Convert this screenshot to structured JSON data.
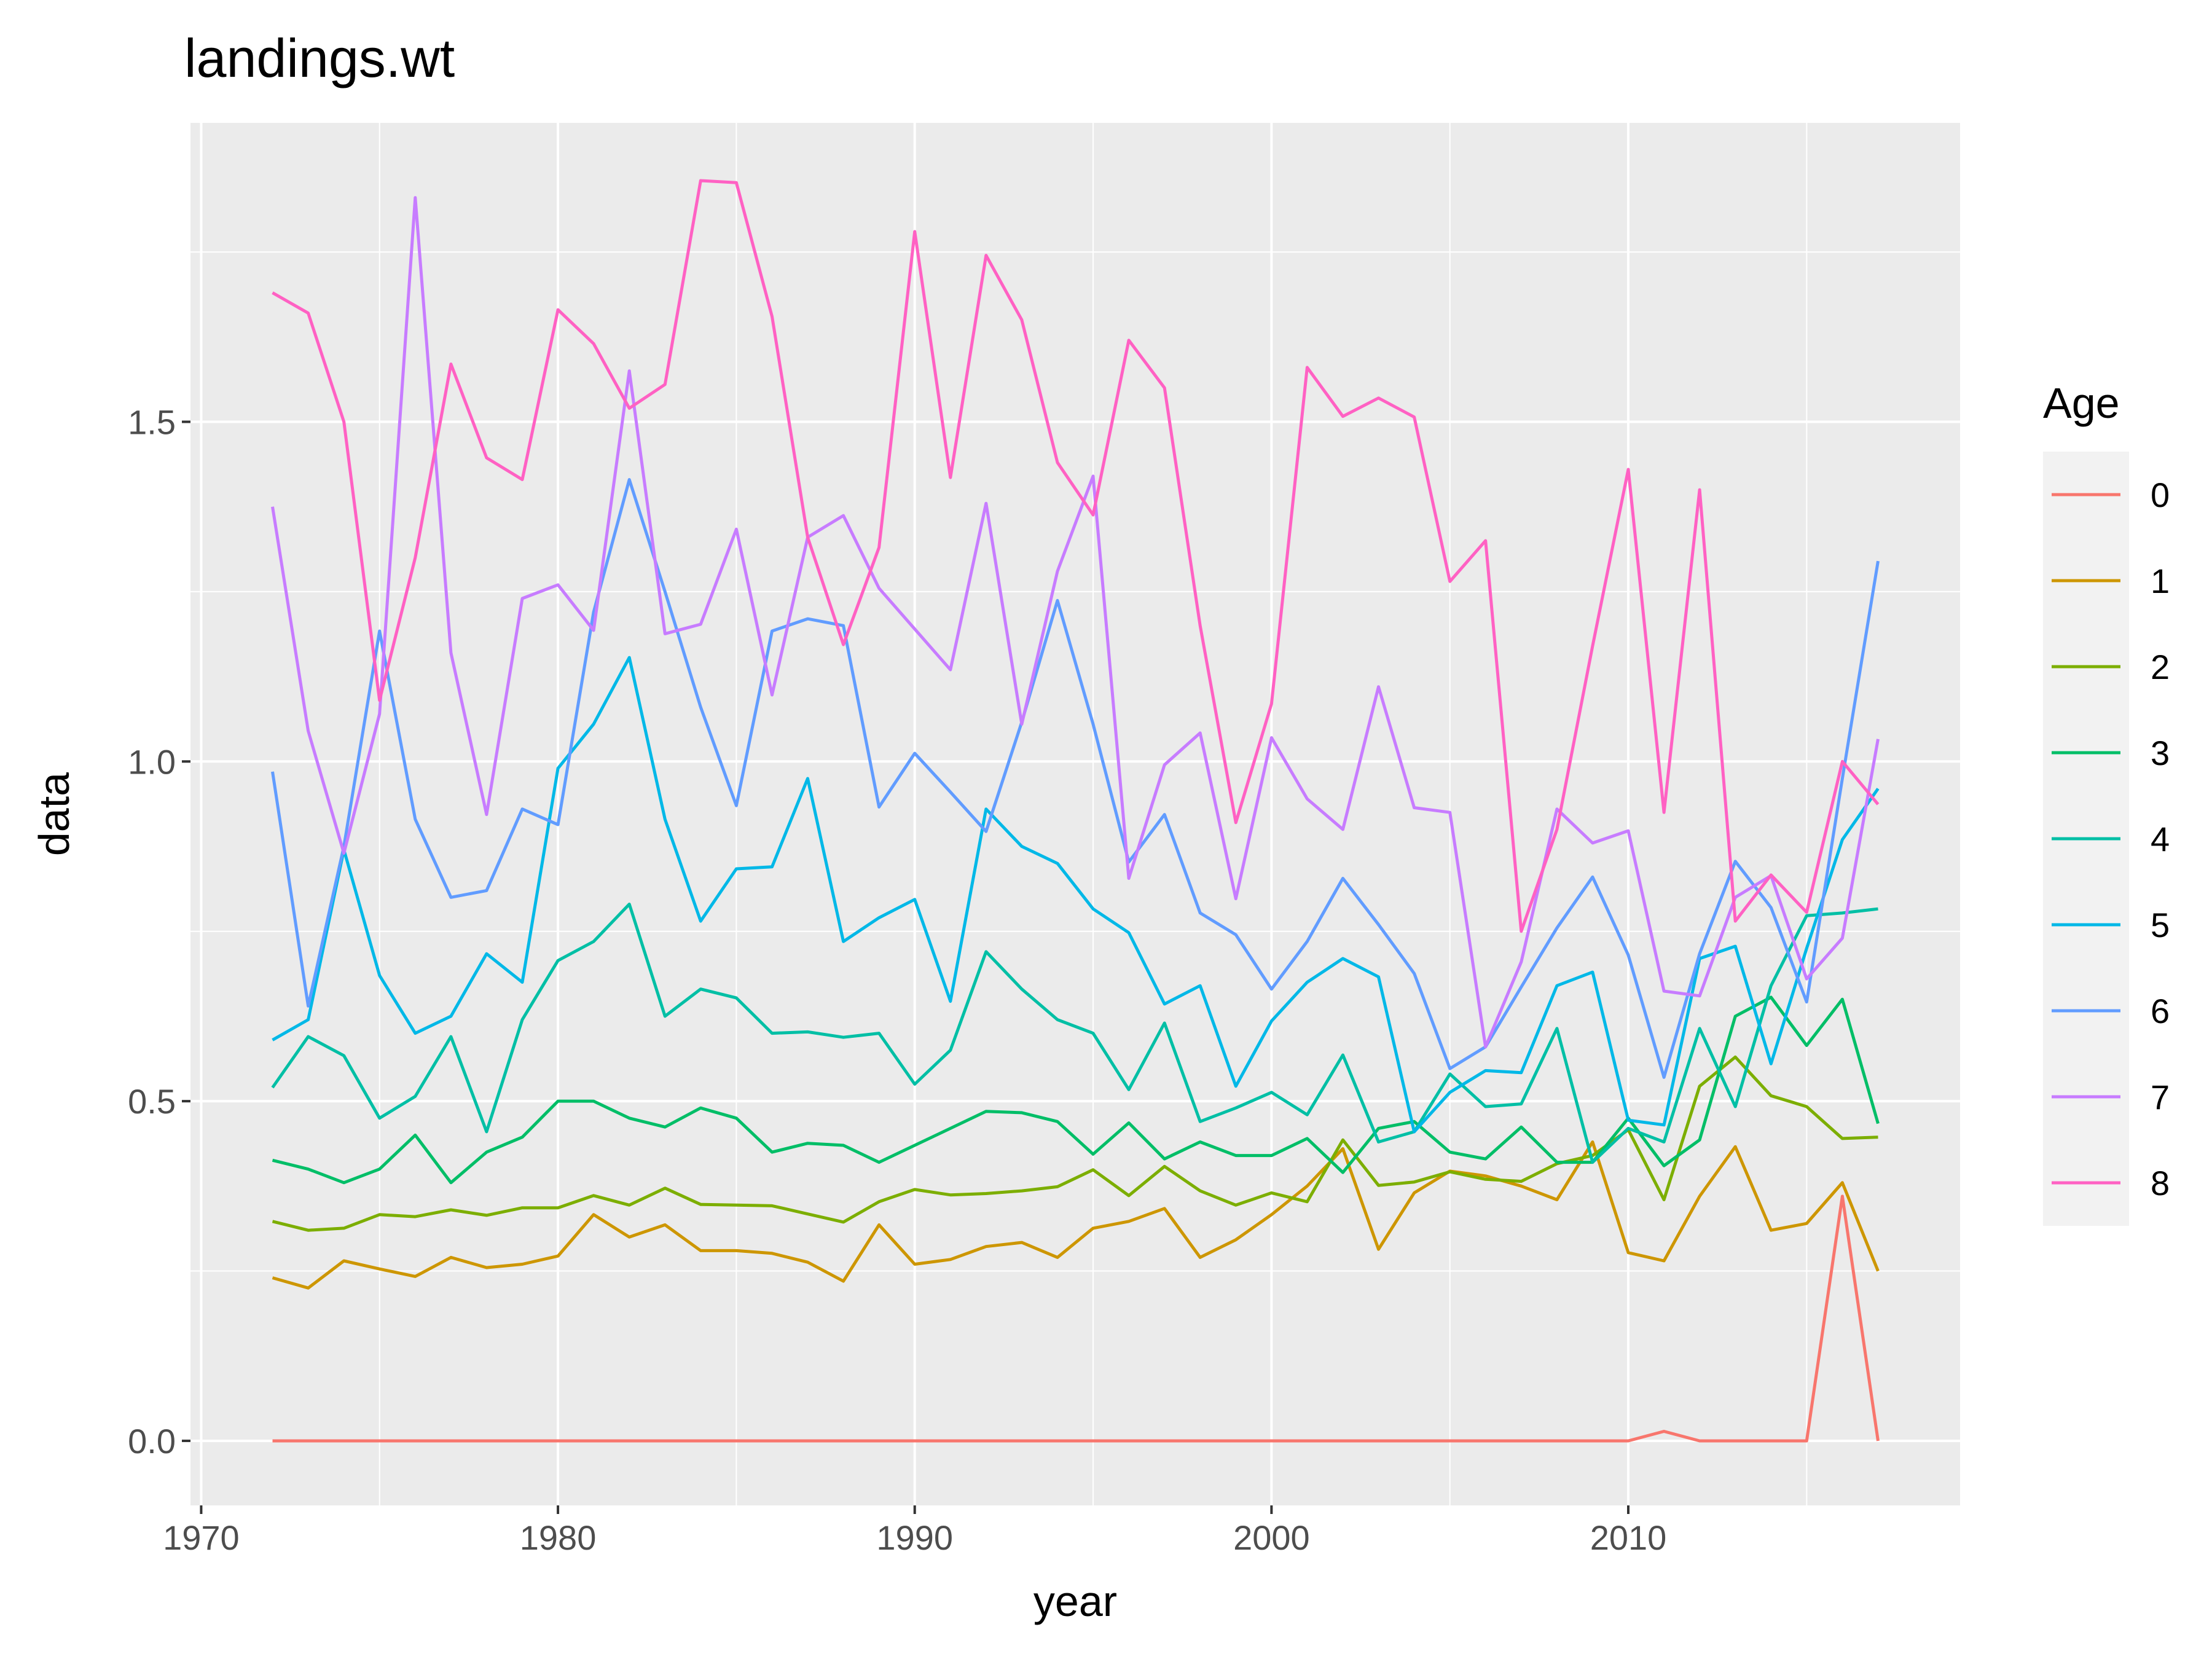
{
  "chart_data": {
    "type": "line",
    "title": "landings.wt",
    "xlabel": "year",
    "ylabel": "data",
    "xlim": [
      1969.7,
      2019.3
    ],
    "ylim": [
      -0.095,
      1.94
    ],
    "x_ticks": [
      1970,
      1980,
      1990,
      2000,
      2010
    ],
    "x_tick_labels": [
      "1970",
      "1980",
      "1990",
      "2000",
      "2010"
    ],
    "y_ticks": [
      0,
      0.5,
      1,
      1.5
    ],
    "y_tick_labels": [
      "0.0",
      "0.5",
      "1.0",
      "1.5"
    ],
    "grid": true,
    "legend": {
      "title": "Age",
      "position": "right"
    },
    "x": [
      1972,
      1973,
      1974,
      1975,
      1976,
      1977,
      1978,
      1979,
      1980,
      1981,
      1982,
      1983,
      1984,
      1985,
      1986,
      1987,
      1988,
      1989,
      1990,
      1991,
      1992,
      1993,
      1994,
      1995,
      1996,
      1997,
      1998,
      1999,
      2000,
      2001,
      2002,
      2003,
      2004,
      2005,
      2006,
      2007,
      2008,
      2009,
      2010,
      2011,
      2012,
      2013,
      2014,
      2015,
      2016,
      2017
    ],
    "series": [
      {
        "name": "0",
        "color": "#F8766D",
        "values": [
          0,
          0,
          0,
          0,
          0,
          0,
          0,
          0,
          0,
          0,
          0,
          0,
          0,
          0,
          0,
          0,
          0,
          0,
          0,
          0,
          0,
          0,
          0,
          0,
          0,
          0,
          0,
          0,
          0,
          0,
          0,
          0,
          0,
          0,
          0,
          0,
          0,
          0,
          0,
          0.014,
          0,
          0,
          0,
          0,
          0.36,
          0
        ]
      },
      {
        "name": "1",
        "color": "#CD9600",
        "values": [
          0.24,
          0.225,
          0.265,
          0.253,
          0.242,
          0.27,
          0.255,
          0.26,
          0.272,
          0.333,
          0.3,
          0.318,
          0.28,
          0.28,
          0.276,
          0.263,
          0.235,
          0.318,
          0.26,
          0.267,
          0.286,
          0.292,
          0.27,
          0.313,
          0.323,
          0.342,
          0.27,
          0.296,
          0.333,
          0.375,
          0.43,
          0.282,
          0.365,
          0.397,
          0.39,
          0.375,
          0.355,
          0.44,
          0.277,
          0.265,
          0.36,
          0.433,
          0.31,
          0.32,
          0.38,
          0.25
        ]
      },
      {
        "name": "2",
        "color": "#7CAE00",
        "values": [
          0.323,
          0.31,
          0.313,
          0.333,
          0.33,
          0.34,
          0.332,
          0.343,
          0.343,
          0.361,
          0.347,
          0.372,
          0.348,
          0.347,
          0.346,
          0.334,
          0.322,
          0.352,
          0.37,
          0.362,
          0.364,
          0.368,
          0.374,
          0.399,
          0.361,
          0.404,
          0.368,
          0.347,
          0.365,
          0.352,
          0.443,
          0.376,
          0.381,
          0.396,
          0.385,
          0.382,
          0.408,
          0.42,
          0.458,
          0.355,
          0.522,
          0.565,
          0.508,
          0.492,
          0.445,
          0.447
        ]
      },
      {
        "name": "3",
        "color": "#00BE67",
        "values": [
          0.413,
          0.4,
          0.38,
          0.4,
          0.45,
          0.38,
          0.425,
          0.447,
          0.5,
          0.5,
          0.475,
          0.462,
          0.49,
          0.475,
          0.425,
          0.438,
          0.435,
          0.41,
          0.435,
          0.46,
          0.485,
          0.483,
          0.47,
          0.422,
          0.468,
          0.415,
          0.44,
          0.42,
          0.42,
          0.445,
          0.395,
          0.46,
          0.47,
          0.425,
          0.415,
          0.462,
          0.41,
          0.41,
          0.475,
          0.405,
          0.443,
          0.625,
          0.653,
          0.582,
          0.65,
          0.467
        ]
      },
      {
        "name": "4",
        "color": "#00BFA5",
        "values": [
          0.52,
          0.595,
          0.567,
          0.475,
          0.507,
          0.595,
          0.455,
          0.62,
          0.707,
          0.735,
          0.79,
          0.625,
          0.665,
          0.652,
          0.6,
          0.602,
          0.594,
          0.6,
          0.525,
          0.575,
          0.72,
          0.665,
          0.62,
          0.6,
          0.517,
          0.615,
          0.47,
          0.49,
          0.513,
          0.48,
          0.568,
          0.44,
          0.455,
          0.54,
          0.492,
          0.496,
          0.607,
          0.41,
          0.46,
          0.44,
          0.607,
          0.492,
          0.67,
          0.773,
          0.777,
          0.783
        ]
      },
      {
        "name": "5",
        "color": "#00B8E7",
        "values": [
          0.59,
          0.62,
          0.87,
          0.685,
          0.6,
          0.625,
          0.717,
          0.675,
          0.99,
          1.055,
          1.153,
          0.915,
          0.765,
          0.842,
          0.845,
          0.975,
          0.735,
          0.77,
          0.797,
          0.647,
          0.93,
          0.875,
          0.85,
          0.783,
          0.748,
          0.643,
          0.67,
          0.522,
          0.618,
          0.675,
          0.71,
          0.683,
          0.455,
          0.513,
          0.545,
          0.542,
          0.67,
          0.69,
          0.472,
          0.465,
          0.71,
          0.728,
          0.555,
          0.725,
          0.885,
          0.96
        ]
      },
      {
        "name": "6",
        "color": "#619CFF",
        "values": [
          0.985,
          0.64,
          0.875,
          1.192,
          0.915,
          0.8,
          0.81,
          0.93,
          0.907,
          1.22,
          1.415,
          1.25,
          1.08,
          0.935,
          1.192,
          1.21,
          1.2,
          0.933,
          1.012,
          0.955,
          0.897,
          1.058,
          1.237,
          1.055,
          0.852,
          0.922,
          0.777,
          0.745,
          0.665,
          0.735,
          0.828,
          0.76,
          0.688,
          0.548,
          0.58,
          0.668,
          0.755,
          0.83,
          0.715,
          0.535,
          0.717,
          0.853,
          0.785,
          0.646,
          0.975,
          1.295
        ]
      },
      {
        "name": "7",
        "color": "#C77CFF",
        "values": [
          1.375,
          1.045,
          0.865,
          1.07,
          1.83,
          1.16,
          0.922,
          1.24,
          1.26,
          1.193,
          1.575,
          1.188,
          1.202,
          1.342,
          1.098,
          1.33,
          1.362,
          1.255,
          1.195,
          1.135,
          1.38,
          1.055,
          1.28,
          1.42,
          0.828,
          0.995,
          1.042,
          0.798,
          1.035,
          0.945,
          0.9,
          1.11,
          0.932,
          0.925,
          0.58,
          0.705,
          0.93,
          0.88,
          0.898,
          0.662,
          0.655,
          0.8,
          0.832,
          0.68,
          0.74,
          1.033
        ]
      },
      {
        "name": "8",
        "color": "#FF61C3",
        "values": [
          1.69,
          1.66,
          1.5,
          1.09,
          1.3,
          1.585,
          1.447,
          1.415,
          1.665,
          1.615,
          1.52,
          1.555,
          1.855,
          1.852,
          1.655,
          1.33,
          1.172,
          1.315,
          1.78,
          1.418,
          1.745,
          1.65,
          1.44,
          1.363,
          1.62,
          1.55,
          1.2,
          0.91,
          1.085,
          1.58,
          1.508,
          1.535,
          1.507,
          1.265,
          1.325,
          0.75,
          0.9,
          1.17,
          1.43,
          0.925,
          1.4,
          0.765,
          0.833,
          0.778,
          1.0,
          0.937
        ]
      }
    ]
  }
}
